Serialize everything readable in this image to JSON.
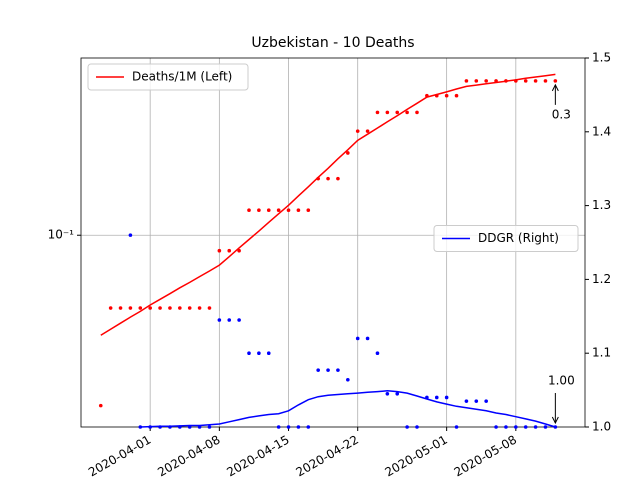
{
  "chart_data": {
    "type": "line",
    "title": "Uzbekistan - 10 Deaths",
    "ylog": true,
    "grid": true,
    "x": [
      "2020-03-27",
      "2020-03-28",
      "2020-03-29",
      "2020-03-30",
      "2020-03-31",
      "2020-04-01",
      "2020-04-02",
      "2020-04-03",
      "2020-04-04",
      "2020-04-05",
      "2020-04-06",
      "2020-04-07",
      "2020-04-08",
      "2020-04-09",
      "2020-04-10",
      "2020-04-11",
      "2020-04-12",
      "2020-04-13",
      "2020-04-14",
      "2020-04-15",
      "2020-04-16",
      "2020-04-17",
      "2020-04-18",
      "2020-04-19",
      "2020-04-20",
      "2020-04-21",
      "2020-04-22",
      "2020-04-23",
      "2020-04-24",
      "2020-04-25",
      "2020-04-26",
      "2020-04-27",
      "2020-04-28",
      "2020-04-29",
      "2020-04-30",
      "2020-05-01",
      "2020-05-02",
      "2020-05-03",
      "2020-05-04",
      "2020-05-05",
      "2020-05-06",
      "2020-05-07",
      "2020-05-08",
      "2020-05-09",
      "2020-05-10",
      "2020-05-11",
      "2020-05-12"
    ],
    "xlim": [
      "2020-03-25",
      "2020-05-15"
    ],
    "xticks": [
      "2020-04-01",
      "2020-04-08",
      "2020-04-15",
      "2020-04-22",
      "2020-05-01",
      "2020-05-08"
    ],
    "ylim": [
      0.0257,
      0.351
    ],
    "yticks": [
      {
        "value": 0.1,
        "label": "10⁻¹"
      }
    ],
    "y2lim": [
      1.0,
      1.5
    ],
    "y2ticks": [
      {
        "value": 1.0,
        "label": "1.0"
      },
      1.1,
      1.2,
      1.3,
      1.4,
      1.5
    ],
    "series": [
      {
        "name": "Deaths/1M (Left)",
        "color": "#ff0000",
        "axis": "y",
        "legend": "upper left",
        "end_label": "0.3",
        "values": [
          0.0492,
          0.0514,
          0.0536,
          0.056,
          0.0583,
          0.061,
          0.0635,
          0.0661,
          0.0689,
          0.0716,
          0.0746,
          0.0776,
          0.0809,
          0.0859,
          0.0914,
          0.097,
          0.103,
          0.1096,
          0.1164,
          0.1236,
          0.1321,
          0.1409,
          0.1507,
          0.1607,
          0.1718,
          0.1832,
          0.1959,
          0.2046,
          0.2138,
          0.2234,
          0.2333,
          0.2438,
          0.2547,
          0.2661,
          0.271,
          0.2761,
          0.2818,
          0.2871,
          0.2897,
          0.2924,
          0.2951,
          0.2979,
          0.3006,
          0.3041,
          0.3069,
          0.3097,
          0.3126
        ],
        "points": [
          0.0299,
          0.0597,
          0.0597,
          0.0597,
          0.0597,
          0.0597,
          0.0597,
          0.0597,
          0.0597,
          0.0597,
          0.0597,
          0.0597,
          0.0896,
          0.0896,
          0.0896,
          0.1194,
          0.1194,
          0.1194,
          0.1194,
          0.1194,
          0.1194,
          0.1194,
          0.1493,
          0.1493,
          0.1493,
          0.1791,
          0.209,
          0.209,
          0.2388,
          0.2388,
          0.2388,
          0.2388,
          0.2388,
          0.2687,
          0.2687,
          0.2687,
          0.2687,
          0.2985,
          0.2985,
          0.2985,
          0.2985,
          0.2985,
          0.2985,
          0.2985,
          0.2985,
          0.2985,
          0.2985
        ]
      },
      {
        "name": "DDGR (Right)",
        "color": "#0000ff",
        "axis": "y2",
        "legend": "center right",
        "end_label": "1.00",
        "values": [
          null,
          null,
          null,
          null,
          1.0,
          1.0005,
          1.001,
          1.001,
          1.0015,
          1.002,
          1.002,
          1.003,
          1.004,
          1.007,
          1.01,
          1.013,
          1.015,
          1.017,
          1.018,
          1.022,
          1.03,
          1.037,
          1.041,
          1.043,
          1.044,
          1.045,
          1.046,
          1.047,
          1.048,
          1.049,
          1.048,
          1.046,
          1.042,
          1.038,
          1.034,
          1.031,
          1.028,
          1.026,
          1.024,
          1.022,
          1.019,
          1.017,
          1.014,
          1.011,
          1.008,
          1.004,
          1.0
        ],
        "points": [
          null,
          null,
          null,
          1.26,
          1.0,
          1.0,
          1.0,
          1.0,
          1.0,
          1.0,
          1.0,
          1.0,
          1.145,
          1.145,
          1.145,
          1.1,
          1.1,
          1.1,
          1.0,
          1.0,
          1.0,
          1.0,
          1.077,
          1.077,
          1.077,
          1.064,
          1.12,
          1.12,
          1.1,
          1.045,
          1.045,
          1.0,
          1.0,
          1.04,
          1.04,
          1.04,
          1.0,
          1.035,
          1.035,
          1.035,
          1.0,
          1.0,
          1.0,
          1.0,
          1.0,
          1.0,
          1.0
        ]
      }
    ]
  }
}
